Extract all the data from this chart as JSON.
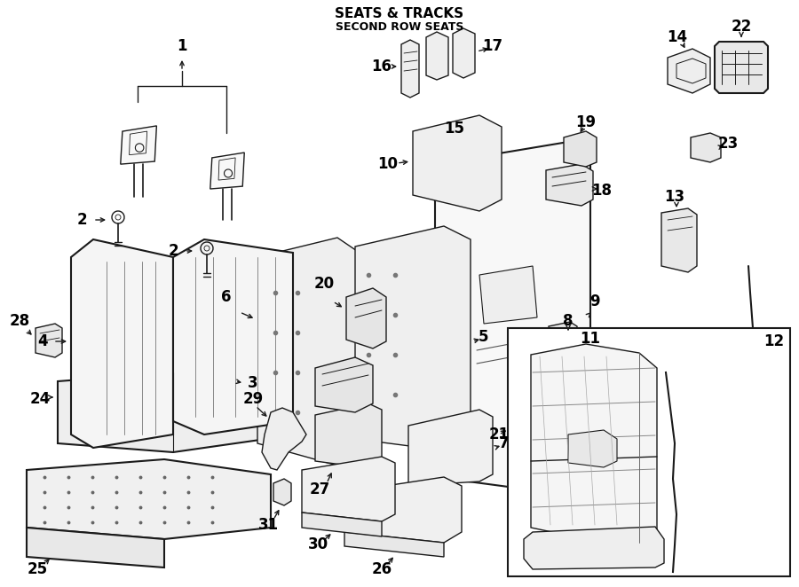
{
  "title": "SEATS & TRACKS",
  "subtitle": "SECOND ROW SEATS",
  "background_color": "#ffffff",
  "line_color": "#1a1a1a",
  "figsize": [
    9.0,
    6.62
  ],
  "dpi": 100,
  "label_fontsize": 12,
  "callout_lw": 1.0
}
